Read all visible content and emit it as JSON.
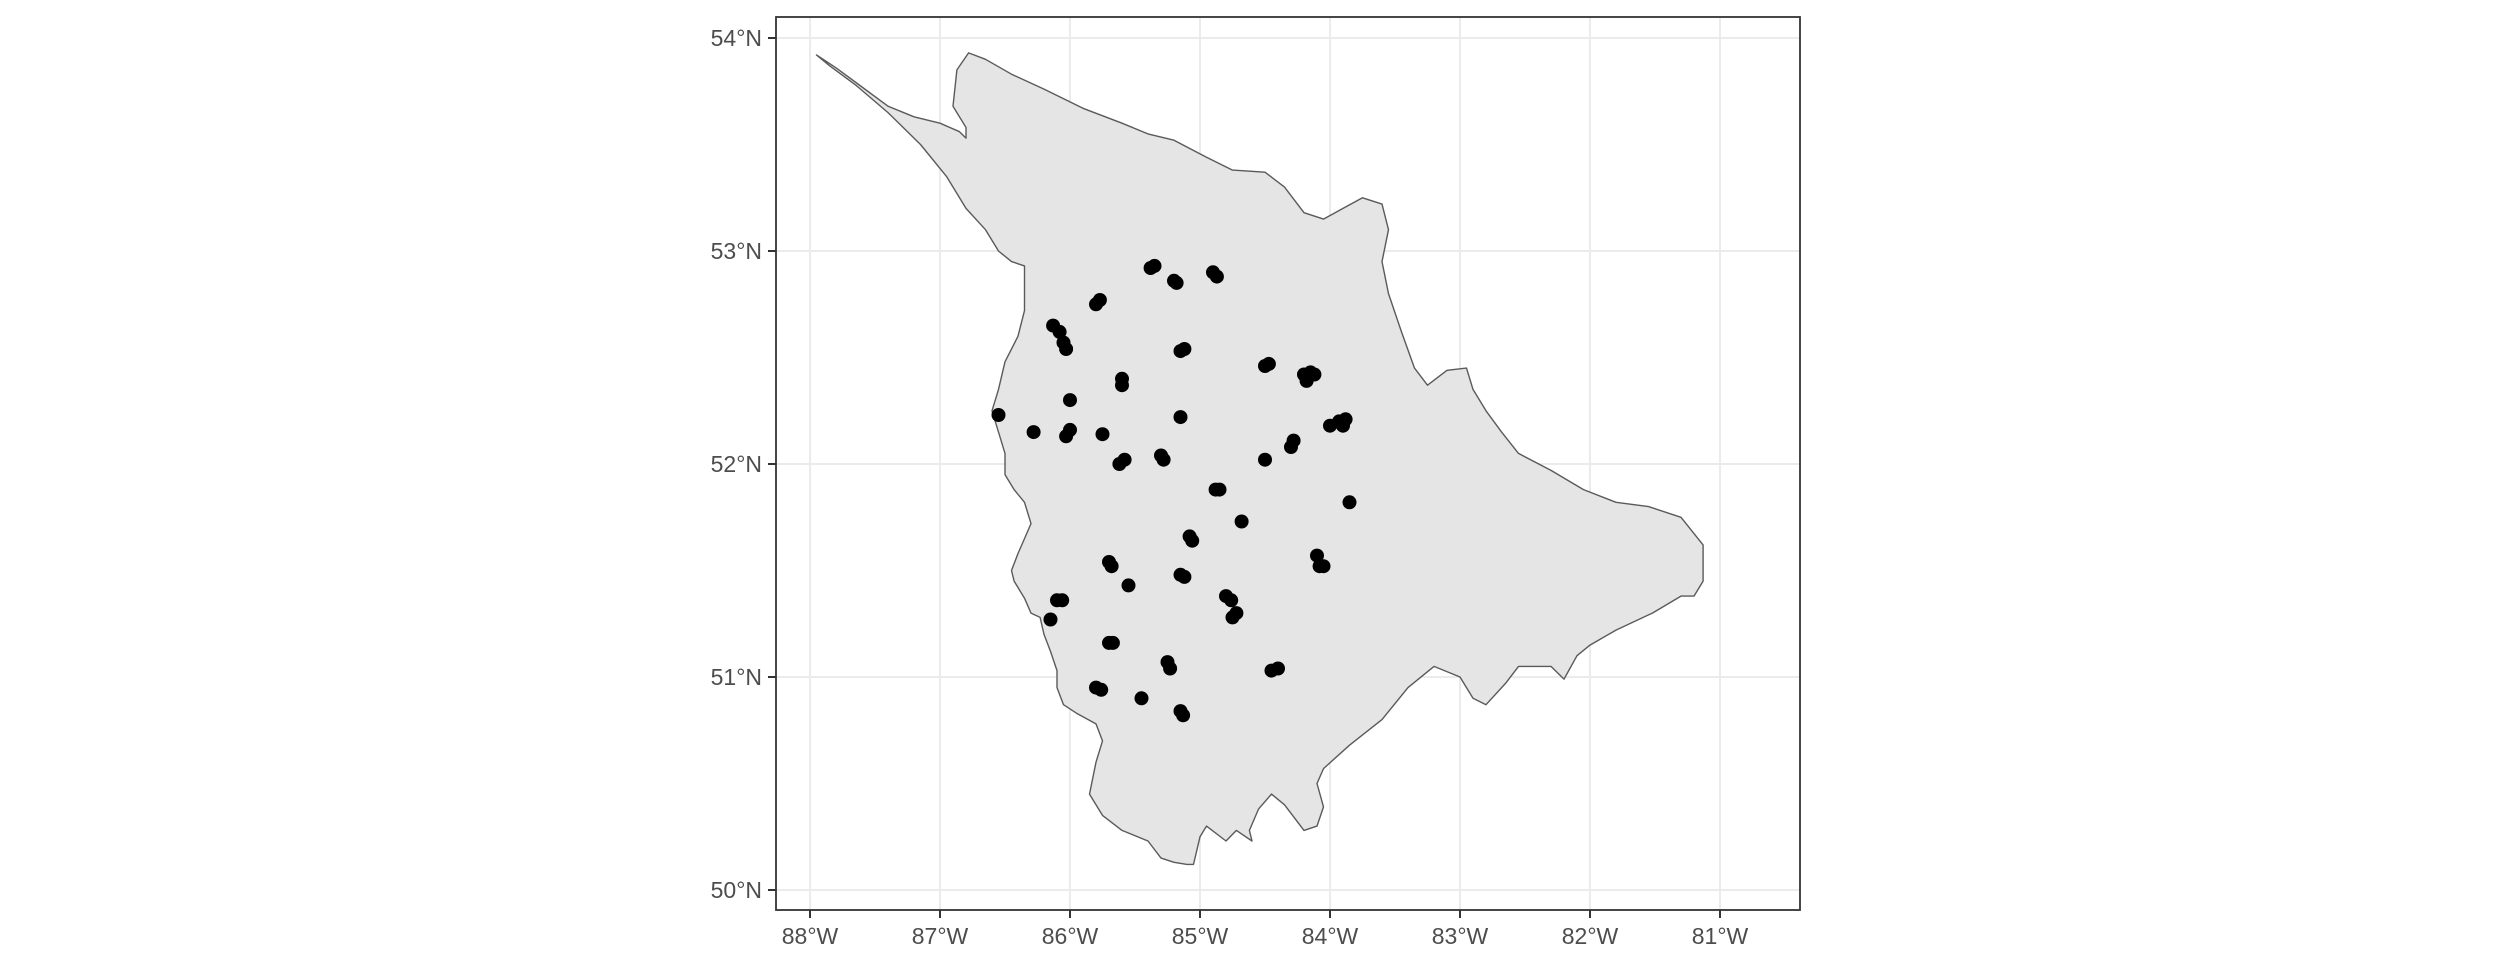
{
  "map": {
    "x_ticks": [
      {
        "lon": -88,
        "label": "88°W"
      },
      {
        "lon": -87,
        "label": "87°W"
      },
      {
        "lon": -86,
        "label": "86°W"
      },
      {
        "lon": -85,
        "label": "85°W"
      },
      {
        "lon": -84,
        "label": "84°W"
      },
      {
        "lon": -83,
        "label": "83°W"
      },
      {
        "lon": -82,
        "label": "82°W"
      },
      {
        "lon": -81,
        "label": "81°W"
      }
    ],
    "y_ticks": [
      {
        "lat": 50,
        "label": "50°N"
      },
      {
        "lat": 51,
        "label": "51°N"
      },
      {
        "lat": 52,
        "label": "52°N"
      },
      {
        "lat": 53,
        "label": "53°N"
      },
      {
        "lat": 54,
        "label": "54°N"
      }
    ],
    "lon_range": [
      -88.3,
      -80.7
    ],
    "lat_range": [
      49.9,
      54.1
    ],
    "grid": true,
    "colors": {
      "region_fill": "#e5e5e5",
      "region_stroke": "#5a5a5a",
      "points": "#000000",
      "grid": "#ebebeb"
    },
    "outline": [
      [
        -87.95,
        53.92
      ],
      [
        -87.8,
        53.86
      ],
      [
        -87.6,
        53.77
      ],
      [
        -87.4,
        53.68
      ],
      [
        -87.2,
        53.63
      ],
      [
        -87.0,
        53.6
      ],
      [
        -86.85,
        53.56
      ],
      [
        -86.8,
        53.53
      ],
      [
        -86.8,
        53.58
      ],
      [
        -86.9,
        53.68
      ],
      [
        -86.87,
        53.85
      ],
      [
        -86.78,
        53.93
      ],
      [
        -86.65,
        53.9
      ],
      [
        -86.45,
        53.83
      ],
      [
        -86.2,
        53.76
      ],
      [
        -85.9,
        53.67
      ],
      [
        -85.6,
        53.6
      ],
      [
        -85.4,
        53.55
      ],
      [
        -85.2,
        53.52
      ],
      [
        -84.95,
        53.44
      ],
      [
        -84.75,
        53.38
      ],
      [
        -84.5,
        53.37
      ],
      [
        -84.35,
        53.3
      ],
      [
        -84.2,
        53.18
      ],
      [
        -84.05,
        53.15
      ],
      [
        -83.9,
        53.2
      ],
      [
        -83.75,
        53.25
      ],
      [
        -83.6,
        53.22
      ],
      [
        -83.55,
        53.1
      ],
      [
        -83.6,
        52.95
      ],
      [
        -83.55,
        52.8
      ],
      [
        -83.45,
        52.62
      ],
      [
        -83.35,
        52.45
      ],
      [
        -83.25,
        52.37
      ],
      [
        -83.1,
        52.44
      ],
      [
        -82.95,
        52.45
      ],
      [
        -82.9,
        52.35
      ],
      [
        -82.8,
        52.25
      ],
      [
        -82.68,
        52.15
      ],
      [
        -82.55,
        52.05
      ],
      [
        -82.3,
        51.97
      ],
      [
        -82.05,
        51.88
      ],
      [
        -81.8,
        51.82
      ],
      [
        -81.55,
        51.8
      ],
      [
        -81.3,
        51.75
      ],
      [
        -81.13,
        51.62
      ],
      [
        -81.13,
        51.45
      ],
      [
        -81.2,
        51.38
      ],
      [
        -81.3,
        51.38
      ],
      [
        -81.52,
        51.3
      ],
      [
        -81.8,
        51.22
      ],
      [
        -82.0,
        51.15
      ],
      [
        -82.1,
        51.1
      ],
      [
        -82.2,
        50.99
      ],
      [
        -82.3,
        51.05
      ],
      [
        -82.55,
        51.05
      ],
      [
        -82.65,
        50.97
      ],
      [
        -82.8,
        50.87
      ],
      [
        -82.9,
        50.9
      ],
      [
        -83.0,
        51.0
      ],
      [
        -83.2,
        51.05
      ],
      [
        -83.4,
        50.95
      ],
      [
        -83.6,
        50.8
      ],
      [
        -83.85,
        50.68
      ],
      [
        -84.05,
        50.57
      ],
      [
        -84.1,
        50.5
      ],
      [
        -84.05,
        50.39
      ],
      [
        -84.1,
        50.3
      ],
      [
        -84.2,
        50.28
      ],
      [
        -84.35,
        50.4
      ],
      [
        -84.45,
        50.45
      ],
      [
        -84.55,
        50.38
      ],
      [
        -84.62,
        50.28
      ],
      [
        -84.6,
        50.23
      ],
      [
        -84.72,
        50.28
      ],
      [
        -84.8,
        50.23
      ],
      [
        -84.95,
        50.3
      ],
      [
        -85.0,
        50.25
      ],
      [
        -85.05,
        50.12
      ],
      [
        -85.1,
        50.12
      ],
      [
        -85.2,
        50.13
      ],
      [
        -85.3,
        50.15
      ],
      [
        -85.4,
        50.23
      ],
      [
        -85.6,
        50.28
      ],
      [
        -85.75,
        50.35
      ],
      [
        -85.85,
        50.45
      ],
      [
        -85.8,
        50.6
      ],
      [
        -85.75,
        50.7
      ],
      [
        -85.8,
        50.78
      ],
      [
        -85.95,
        50.83
      ],
      [
        -86.05,
        50.87
      ],
      [
        -86.1,
        50.95
      ],
      [
        -86.1,
        51.03
      ],
      [
        -86.15,
        51.12
      ],
      [
        -86.2,
        51.2
      ],
      [
        -86.23,
        51.28
      ],
      [
        -86.3,
        51.3
      ],
      [
        -86.35,
        51.37
      ],
      [
        -86.43,
        51.45
      ],
      [
        -86.45,
        51.5
      ],
      [
        -86.4,
        51.58
      ],
      [
        -86.35,
        51.65
      ],
      [
        -86.3,
        51.72
      ],
      [
        -86.35,
        51.82
      ],
      [
        -86.43,
        51.88
      ],
      [
        -86.5,
        51.95
      ],
      [
        -86.5,
        52.05
      ],
      [
        -86.55,
        52.15
      ],
      [
        -86.6,
        52.25
      ],
      [
        -86.55,
        52.35
      ],
      [
        -86.5,
        52.48
      ],
      [
        -86.4,
        52.6
      ],
      [
        -86.35,
        52.72
      ],
      [
        -86.35,
        52.82
      ],
      [
        -86.35,
        52.93
      ],
      [
        -86.45,
        52.95
      ],
      [
        -86.55,
        53.0
      ],
      [
        -86.65,
        53.1
      ],
      [
        -86.8,
        53.2
      ],
      [
        -86.95,
        53.35
      ],
      [
        -87.15,
        53.5
      ],
      [
        -87.4,
        53.65
      ],
      [
        -87.65,
        53.78
      ],
      [
        -87.85,
        53.87
      ],
      [
        -87.95,
        53.92
      ]
    ],
    "sites": [
      [
        -86.55,
        52.23
      ],
      [
        -86.28,
        52.15
      ],
      [
        -86.13,
        52.65
      ],
      [
        -86.08,
        52.62
      ],
      [
        -86.05,
        52.57
      ],
      [
        -86.03,
        52.54
      ],
      [
        -86.0,
        52.3
      ],
      [
        -86.03,
        52.13
      ],
      [
        -86.0,
        52.16
      ],
      [
        -86.1,
        51.36
      ],
      [
        -86.06,
        51.36
      ],
      [
        -86.15,
        51.27
      ],
      [
        -85.8,
        52.75
      ],
      [
        -85.77,
        52.77
      ],
      [
        -85.75,
        52.14
      ],
      [
        -85.6,
        52.4
      ],
      [
        -85.6,
        52.37
      ],
      [
        -85.62,
        52.0
      ],
      [
        -85.58,
        52.02
      ],
      [
        -85.7,
        51.54
      ],
      [
        -85.68,
        51.52
      ],
      [
        -85.55,
        51.43
      ],
      [
        -85.7,
        51.16
      ],
      [
        -85.67,
        51.16
      ],
      [
        -85.8,
        50.95
      ],
      [
        -85.76,
        50.94
      ],
      [
        -85.45,
        50.9
      ],
      [
        -85.38,
        52.92
      ],
      [
        -85.35,
        52.93
      ],
      [
        -85.2,
        52.86
      ],
      [
        -85.18,
        52.85
      ],
      [
        -85.15,
        52.53
      ],
      [
        -85.12,
        52.54
      ],
      [
        -85.15,
        52.22
      ],
      [
        -85.3,
        52.04
      ],
      [
        -85.28,
        52.02
      ],
      [
        -85.25,
        51.07
      ],
      [
        -85.23,
        51.04
      ],
      [
        -85.15,
        51.48
      ],
      [
        -85.12,
        51.47
      ],
      [
        -85.08,
        51.66
      ],
      [
        -85.06,
        51.64
      ],
      [
        -85.15,
        50.84
      ],
      [
        -85.13,
        50.82
      ],
      [
        -84.9,
        52.9
      ],
      [
        -84.87,
        52.88
      ],
      [
        -84.88,
        51.88
      ],
      [
        -84.85,
        51.88
      ],
      [
        -84.8,
        51.38
      ],
      [
        -84.76,
        51.36
      ],
      [
        -84.75,
        51.28
      ],
      [
        -84.72,
        51.3
      ],
      [
        -84.68,
        51.73
      ],
      [
        -84.5,
        52.46
      ],
      [
        -84.47,
        52.47
      ],
      [
        -84.5,
        52.02
      ],
      [
        -84.45,
        51.03
      ],
      [
        -84.4,
        51.04
      ],
      [
        -84.3,
        52.08
      ],
      [
        -84.28,
        52.11
      ],
      [
        -84.2,
        52.42
      ],
      [
        -84.15,
        52.43
      ],
      [
        -84.18,
        52.39
      ],
      [
        -84.12,
        52.42
      ],
      [
        -84.1,
        51.57
      ],
      [
        -84.08,
        51.52
      ],
      [
        -84.05,
        51.52
      ],
      [
        -84.0,
        52.18
      ],
      [
        -83.93,
        52.2
      ],
      [
        -83.9,
        52.18
      ],
      [
        -83.88,
        52.21
      ],
      [
        -83.85,
        51.82
      ]
    ]
  }
}
